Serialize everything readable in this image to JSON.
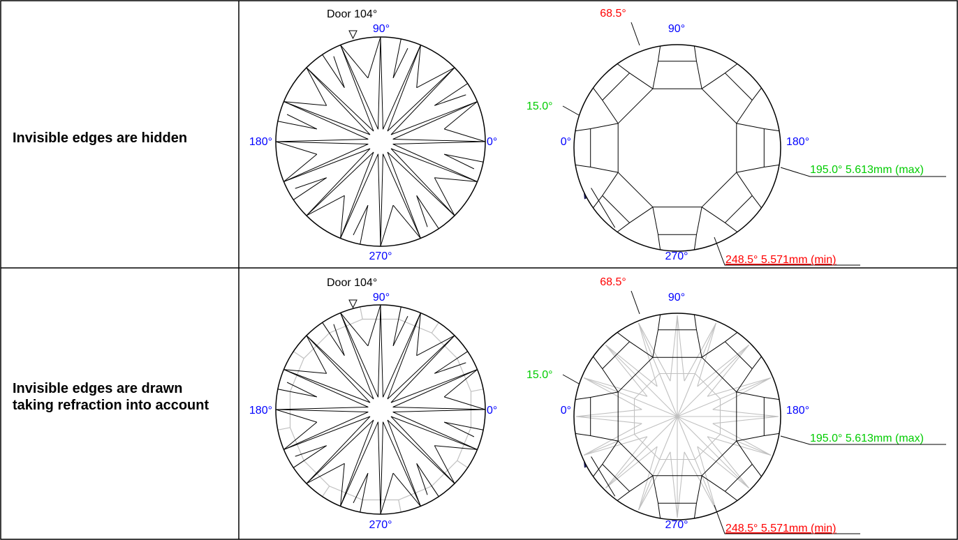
{
  "colors": {
    "border": "#000000",
    "angle_label": "#0000ff",
    "min_label": "#ff0000",
    "max_label": "#00cc00",
    "visible_edge": "#000000",
    "hidden_edge": "#c0c0c0"
  },
  "rows": [
    {
      "label": "Invisible edges are hidden",
      "show_hidden_edges": false,
      "crown": {
        "door": "Door 104°",
        "angles": {
          "top": "90°",
          "left": "180°",
          "right": "0°",
          "bottom": "270°"
        }
      },
      "pavilion": {
        "angles": {
          "top": "90°",
          "left": "0°",
          "right": "180°",
          "bottom": "270°"
        },
        "callout_top": "68.5°",
        "callout_left": "15.0°",
        "max_label": "195.0° 5.613mm (max)",
        "min_label": "248.5° 5.571mm (min)"
      }
    },
    {
      "label": "Invisible edges are drawn taking refraction into account",
      "show_hidden_edges": true,
      "crown": {
        "door": "Door 104°",
        "angles": {
          "top": "90°",
          "left": "180°",
          "right": "0°",
          "bottom": "270°"
        }
      },
      "pavilion": {
        "angles": {
          "top": "90°",
          "left": "0°",
          "right": "180°",
          "bottom": "270°"
        },
        "callout_top": "68.5°",
        "callout_left": "15.0°",
        "max_label": "195.0° 5.613mm (max)",
        "min_label": "248.5° 5.571mm (min)"
      }
    }
  ]
}
